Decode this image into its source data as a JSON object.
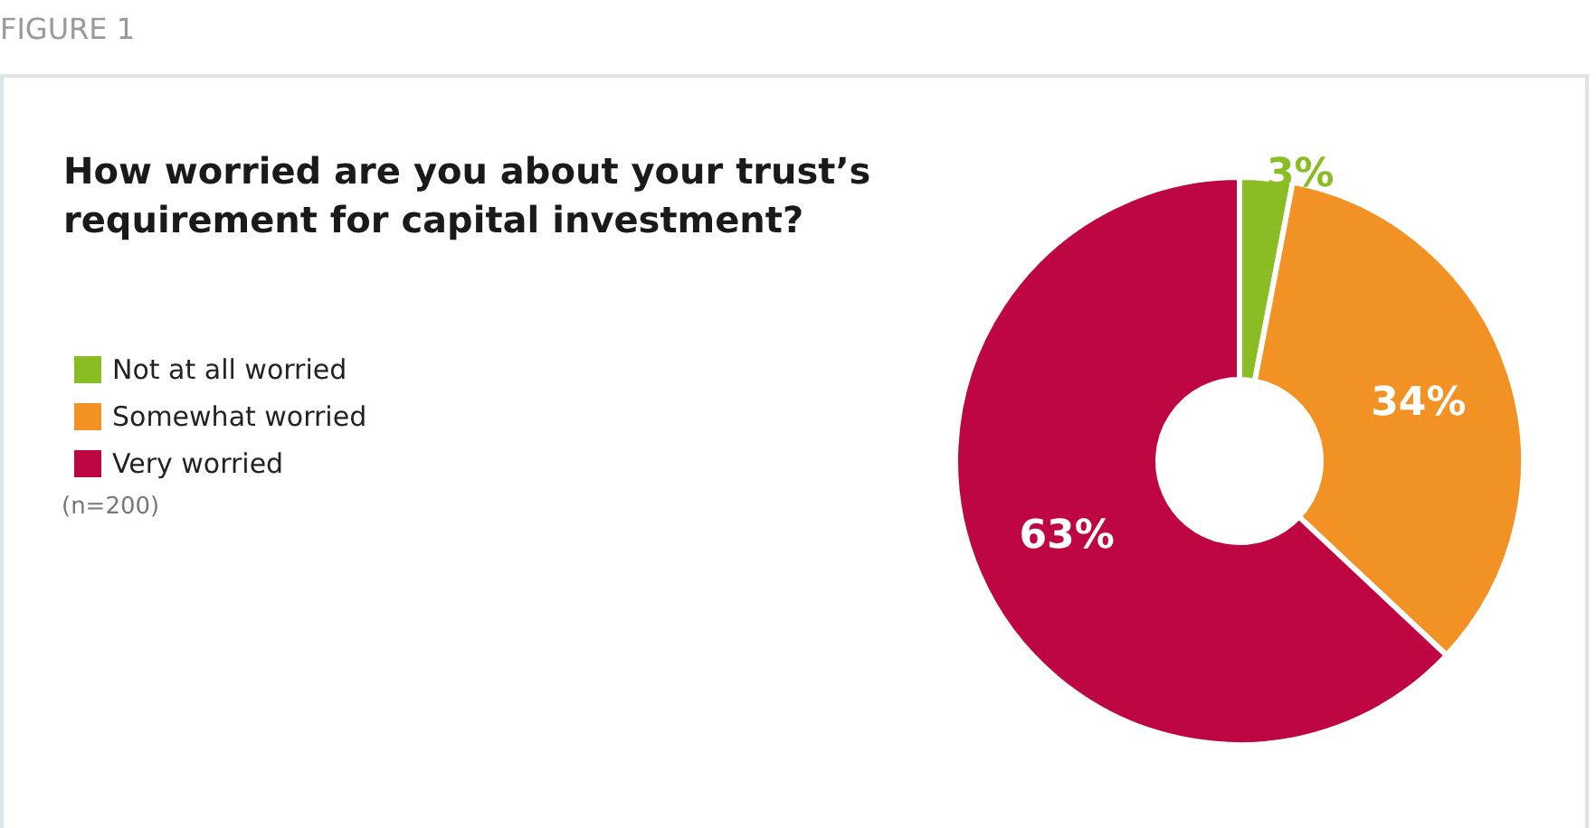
{
  "chart_data": {
    "type": "donut",
    "title": "How worried are you about your trust’s\nrequirement for capital investment?",
    "categories": [
      "Not at all worried",
      "Somewhat worried",
      "Very worried"
    ],
    "values": [
      3,
      34,
      63
    ],
    "colors": [
      "#8abd24",
      "#f29124",
      "#bd0642"
    ],
    "value_labels": [
      "3%",
      "34%",
      "63%"
    ],
    "legend": "left",
    "annotations": [
      "FIGURE 1",
      "(n=200)"
    ]
  }
}
